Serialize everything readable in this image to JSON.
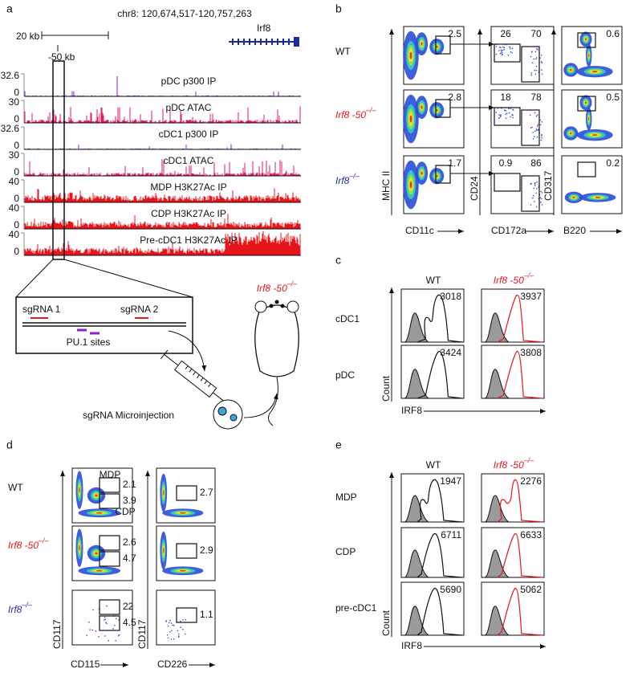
{
  "panel_a": {
    "label": "a",
    "locus": "chr8: 120,674,517-120,757,263",
    "scale": "20 kb",
    "gene": "Irf8",
    "enhancer": "-50 kb",
    "tracks": [
      {
        "name": "pDC p300 IP",
        "top": "32.6",
        "bottom": "0"
      },
      {
        "name": "pDC ATAC",
        "top": "30",
        "bottom": "0"
      },
      {
        "name": "cDC1 p300 IP",
        "top": "32.6",
        "bottom": "0"
      },
      {
        "name": "cDC1 ATAC",
        "top": "30",
        "bottom": "0"
      },
      {
        "name": "MDP H3K27Ac IP",
        "top": "40",
        "bottom": "0"
      },
      {
        "name": "CDP H3K27Ac IP",
        "top": "40",
        "bottom": "0"
      },
      {
        "name": "Pre-cDC1 H3K27Ac IP",
        "top": "40",
        "bottom": "0"
      }
    ],
    "sgrna1": "sgRNA 1",
    "sgrna2": "sgRNA 2",
    "pu1": "PU.1 sites",
    "injection": "sgRNA Microinjection",
    "mouse": {
      "name": "Irf8 -50",
      "sup": "–/–"
    }
  },
  "panel_b": {
    "label": "b",
    "rows": [
      "WT",
      {
        "name": "Irf8 -50",
        "sup": "–/–"
      },
      {
        "name": "Irf8",
        "sup": "–/–"
      }
    ],
    "axes": {
      "y1": "MHC II",
      "x1": "CD11c",
      "y2": "CD24",
      "x2": "CD172a",
      "y3": "CD317",
      "x3": "B220"
    },
    "gates": [
      [
        "2.5",
        "26",
        "70",
        "0.6"
      ],
      [
        "2.8",
        "18",
        "78",
        "0.5"
      ],
      [
        "1.7",
        "0.9",
        "86",
        "0.2"
      ]
    ]
  },
  "panel_c": {
    "label": "c",
    "columns": [
      "WT",
      {
        "name": "Irf8 -50",
        "sup": "–/–"
      }
    ],
    "rows": [
      "cDC1",
      "pDC"
    ],
    "values": [
      [
        "3018",
        "3937"
      ],
      [
        "3424",
        "3808"
      ]
    ],
    "y_axis": "Count",
    "x_axis": "IRF8"
  },
  "panel_d": {
    "label": "d",
    "rows": [
      "WT",
      {
        "name": "Irf8 -50",
        "sup": "–/–"
      },
      {
        "name": "Irf8",
        "sup": "–/–"
      }
    ],
    "gate_names": [
      "MDP",
      "CDP"
    ],
    "gates": [
      [
        "2.1",
        "3.9",
        "2.7"
      ],
      [
        "2.6",
        "4.7",
        "2.9"
      ],
      [
        "22",
        "4.5",
        "1.1"
      ]
    ],
    "axes": {
      "y1": "CD117",
      "x1": "CD115",
      "y2": "CD117",
      "x2": "CD226"
    }
  },
  "panel_e": {
    "label": "e",
    "columns": [
      "WT",
      {
        "name": "Irf8 -50",
        "sup": "–/–"
      }
    ],
    "rows": [
      "MDP",
      "CDP",
      "pre-cDC1"
    ],
    "values": [
      [
        "1947",
        "2276"
      ],
      [
        "6711",
        "6633"
      ],
      [
        "5690",
        "5062"
      ]
    ],
    "y_axis": "Count",
    "x_axis": "IRF8"
  }
}
